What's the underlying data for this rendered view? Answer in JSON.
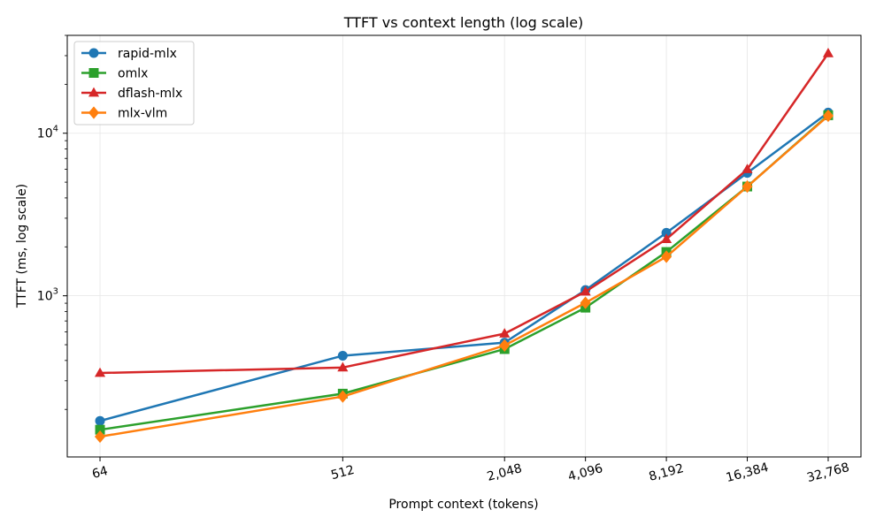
{
  "chart_data": {
    "type": "line",
    "title": "TTFT vs context length (log scale)",
    "xlabel": "Prompt context (tokens)",
    "ylabel": "TTFT (ms, log scale)",
    "x_scale": "log2",
    "y_scale": "log10",
    "x": [
      64,
      512,
      2048,
      4096,
      8192,
      16384,
      32768
    ],
    "x_tick_labels": [
      "64",
      "512",
      "2,048",
      "4,096",
      "8,192",
      "16,384",
      "32,768"
    ],
    "y_ticks": [
      {
        "value": 1000,
        "base": "10",
        "exp": "3"
      },
      {
        "value": 10000,
        "base": "10",
        "exp": "4"
      }
    ],
    "ylim": [
      102,
      40000
    ],
    "grid": true,
    "legend": "top-left",
    "series": [
      {
        "name": "rapid-mlx",
        "color": "#1f77b4",
        "marker": "circle",
        "values": [
          170,
          428,
          515,
          1085,
          2440,
          5700,
          13400
        ]
      },
      {
        "name": "omlx",
        "color": "#2ca02c",
        "marker": "square",
        "values": [
          150,
          250,
          470,
          845,
          1860,
          4700,
          12900
        ]
      },
      {
        "name": "dflash-mlx",
        "color": "#d62728",
        "marker": "triangle",
        "values": [
          335,
          362,
          585,
          1060,
          2230,
          6000,
          31000
        ]
      },
      {
        "name": "mlx-vlm",
        "color": "#ff7f0e",
        "marker": "diamond",
        "values": [
          136,
          240,
          495,
          905,
          1740,
          4700,
          12800
        ]
      }
    ]
  }
}
